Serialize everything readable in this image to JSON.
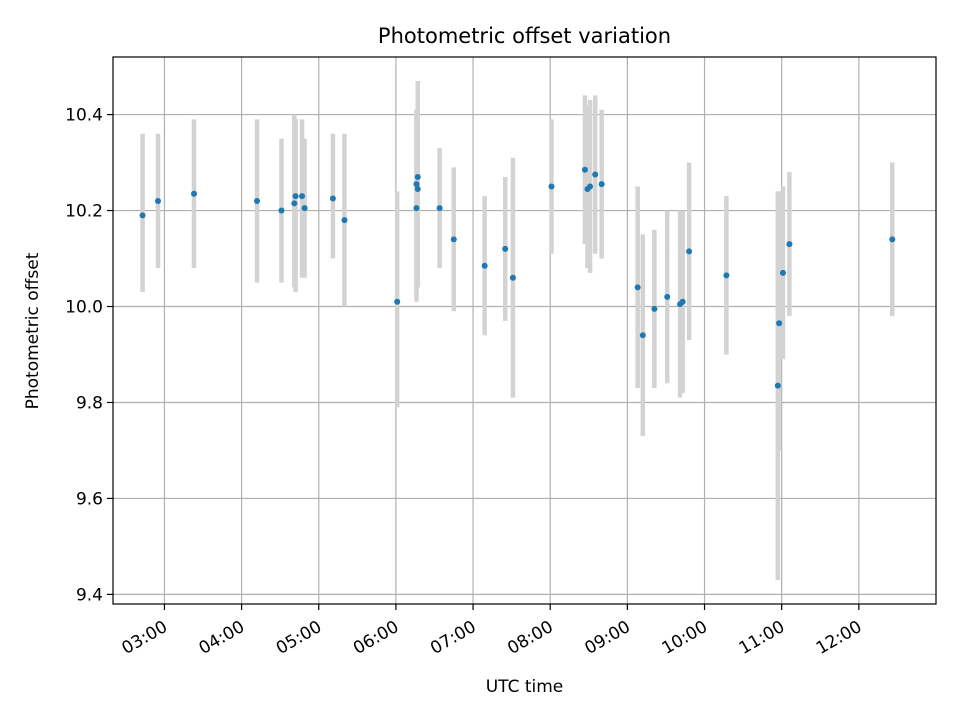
{
  "chart_data": {
    "type": "scatter",
    "title": "Photometric offset variation",
    "xlabel": "UTC time",
    "ylabel": "Photometric offset",
    "x_unit": "UTC time (HH:MM)",
    "xlim": [
      "02:20",
      "13:00"
    ],
    "ylim": [
      9.38,
      10.52
    ],
    "x_ticks": [
      "03:00",
      "04:00",
      "05:00",
      "06:00",
      "07:00",
      "08:00",
      "09:00",
      "10:00",
      "11:00",
      "12:00"
    ],
    "y_ticks": [
      "9.4",
      "9.6",
      "9.8",
      "10.0",
      "10.2",
      "10.4"
    ],
    "y_tick_values": [
      9.4,
      9.6,
      9.8,
      10.0,
      10.2,
      10.4
    ],
    "grid": true,
    "point_color": "#1f77b4",
    "errorbar_color": "#d3d3d3",
    "points": [
      {
        "x": "02:43",
        "y": 10.19,
        "lo": 10.03,
        "hi": 10.36
      },
      {
        "x": "02:55",
        "y": 10.22,
        "lo": 10.08,
        "hi": 10.36
      },
      {
        "x": "03:23",
        "y": 10.235,
        "lo": 10.08,
        "hi": 10.39
      },
      {
        "x": "04:12",
        "y": 10.22,
        "lo": 10.05,
        "hi": 10.39
      },
      {
        "x": "04:31",
        "y": 10.2,
        "lo": 10.05,
        "hi": 10.35
      },
      {
        "x": "04:41",
        "y": 10.215,
        "lo": 10.04,
        "hi": 10.4
      },
      {
        "x": "04:42",
        "y": 10.23,
        "lo": 10.03,
        "hi": 10.39
      },
      {
        "x": "04:47",
        "y": 10.23,
        "lo": 10.06,
        "hi": 10.39
      },
      {
        "x": "04:49",
        "y": 10.205,
        "lo": 10.06,
        "hi": 10.35
      },
      {
        "x": "05:11",
        "y": 10.225,
        "lo": 10.1,
        "hi": 10.36
      },
      {
        "x": "05:20",
        "y": 10.18,
        "lo": 10.0,
        "hi": 10.36
      },
      {
        "x": "06:01",
        "y": 10.01,
        "lo": 9.79,
        "hi": 10.24
      },
      {
        "x": "06:16",
        "y": 10.205,
        "lo": 10.01,
        "hi": 10.4
      },
      {
        "x": "06:16",
        "y": 10.255,
        "lo": 10.03,
        "hi": 10.41
      },
      {
        "x": "06:17",
        "y": 10.245,
        "lo": 10.04,
        "hi": 10.46
      },
      {
        "x": "06:17",
        "y": 10.27,
        "lo": 10.08,
        "hi": 10.47
      },
      {
        "x": "06:34",
        "y": 10.205,
        "lo": 10.08,
        "hi": 10.33
      },
      {
        "x": "06:45",
        "y": 10.14,
        "lo": 9.99,
        "hi": 10.29
      },
      {
        "x": "07:09",
        "y": 10.085,
        "lo": 9.94,
        "hi": 10.23
      },
      {
        "x": "07:25",
        "y": 10.12,
        "lo": 9.97,
        "hi": 10.27
      },
      {
        "x": "07:31",
        "y": 10.06,
        "lo": 9.81,
        "hi": 10.31
      },
      {
        "x": "08:01",
        "y": 10.25,
        "lo": 10.11,
        "hi": 10.39
      },
      {
        "x": "08:27",
        "y": 10.285,
        "lo": 10.13,
        "hi": 10.44
      },
      {
        "x": "08:29",
        "y": 10.245,
        "lo": 10.08,
        "hi": 10.42
      },
      {
        "x": "08:31",
        "y": 10.25,
        "lo": 10.07,
        "hi": 10.43
      },
      {
        "x": "08:35",
        "y": 10.275,
        "lo": 10.11,
        "hi": 10.44
      },
      {
        "x": "08:40",
        "y": 10.255,
        "lo": 10.1,
        "hi": 10.41
      },
      {
        "x": "09:08",
        "y": 10.04,
        "lo": 9.83,
        "hi": 10.25
      },
      {
        "x": "09:12",
        "y": 9.94,
        "lo": 9.73,
        "hi": 10.15
      },
      {
        "x": "09:21",
        "y": 9.995,
        "lo": 9.83,
        "hi": 10.16
      },
      {
        "x": "09:31",
        "y": 10.02,
        "lo": 9.84,
        "hi": 10.2
      },
      {
        "x": "09:41",
        "y": 10.005,
        "lo": 9.81,
        "hi": 10.2
      },
      {
        "x": "09:43",
        "y": 10.01,
        "lo": 9.82,
        "hi": 10.2
      },
      {
        "x": "09:48",
        "y": 10.115,
        "lo": 9.93,
        "hi": 10.3
      },
      {
        "x": "10:17",
        "y": 10.065,
        "lo": 9.9,
        "hi": 10.23
      },
      {
        "x": "10:57",
        "y": 9.835,
        "lo": 9.43,
        "hi": 10.24
      },
      {
        "x": "10:58",
        "y": 9.965,
        "lo": 9.7,
        "hi": 10.24
      },
      {
        "x": "11:01",
        "y": 10.07,
        "lo": 9.89,
        "hi": 10.25
      },
      {
        "x": "11:06",
        "y": 10.13,
        "lo": 9.98,
        "hi": 10.28
      },
      {
        "x": "12:26",
        "y": 10.14,
        "lo": 9.98,
        "hi": 10.3
      }
    ]
  }
}
